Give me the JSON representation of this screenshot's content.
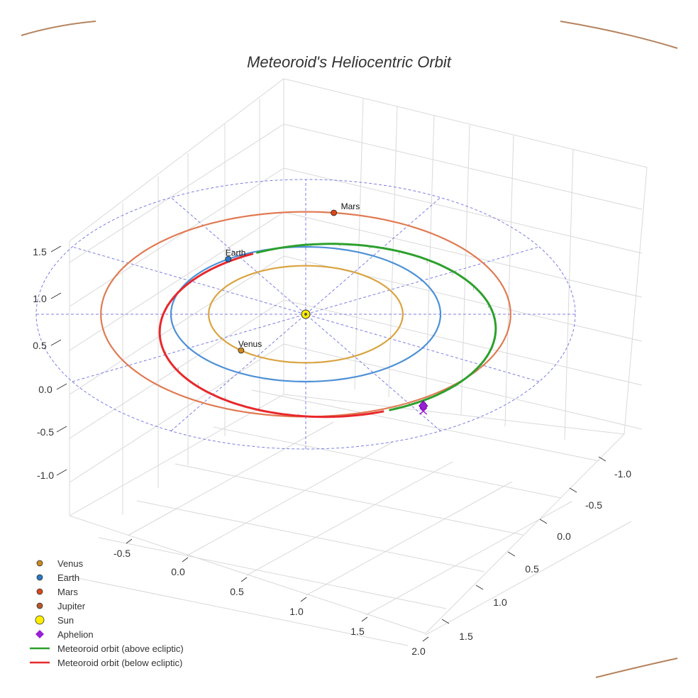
{
  "chart_data": {
    "type": "line3d",
    "title": "Meteoroid's Heliocentric Orbit",
    "axes": {
      "x_ticks": [
        "-0.5",
        "0.0",
        "0.5",
        "1.0",
        "1.5",
        "2.0"
      ],
      "y_ticks": [
        "-1.0",
        "-0.5",
        "0.0",
        "0.5",
        "1.0",
        "1.5"
      ],
      "z_ticks": [
        "-1.0",
        "-0.5",
        "0.0",
        "0.5",
        "1.0",
        "1.5"
      ]
    },
    "planets": [
      {
        "name": "Venus",
        "orbit_radius_au": 0.72,
        "color": "#d9a441",
        "marker_color": "#cc8822",
        "labeled": true
      },
      {
        "name": "Earth",
        "orbit_radius_au": 1.0,
        "color": "#4d90d6",
        "marker_color": "#2a78c8",
        "labeled": true
      },
      {
        "name": "Mars",
        "orbit_radius_au": 1.52,
        "color": "#e07a52",
        "marker_color": "#d9481c",
        "labeled": true
      },
      {
        "name": "Jupiter",
        "orbit_radius_au": 5.2,
        "color": "#b5835e",
        "marker_color": "#b5582a",
        "labeled": false
      }
    ],
    "sun": {
      "name": "Sun",
      "color": "#ffee00"
    },
    "aphelion": {
      "name": "Aphelion",
      "color": "#9b1fd6"
    },
    "meteoroid": {
      "above_label": "Meteoroid orbit (above ecliptic)",
      "below_label": "Meteoroid orbit (below ecliptic)",
      "above_color": "#2ca02c",
      "below_color": "#e8282b"
    },
    "reference_grid_color": "#6666dd",
    "legend_position": "bottom-left",
    "legend": [
      {
        "label": "Venus",
        "kind": "dot",
        "color": "#cc8822"
      },
      {
        "label": "Earth",
        "kind": "dot",
        "color": "#2a78c8"
      },
      {
        "label": "Mars",
        "kind": "dot",
        "color": "#d9481c"
      },
      {
        "label": "Jupiter",
        "kind": "dot",
        "color": "#b5582a"
      },
      {
        "label": "Sun",
        "kind": "bigdot",
        "color": "#ffee00"
      },
      {
        "label": "Aphelion",
        "kind": "diamond",
        "color": "#9b1fd6"
      },
      {
        "label": "Meteoroid orbit (above ecliptic)",
        "kind": "line",
        "color": "#2ca02c"
      },
      {
        "label": "Meteoroid orbit (below ecliptic)",
        "kind": "line",
        "color": "#e8282b"
      }
    ]
  }
}
